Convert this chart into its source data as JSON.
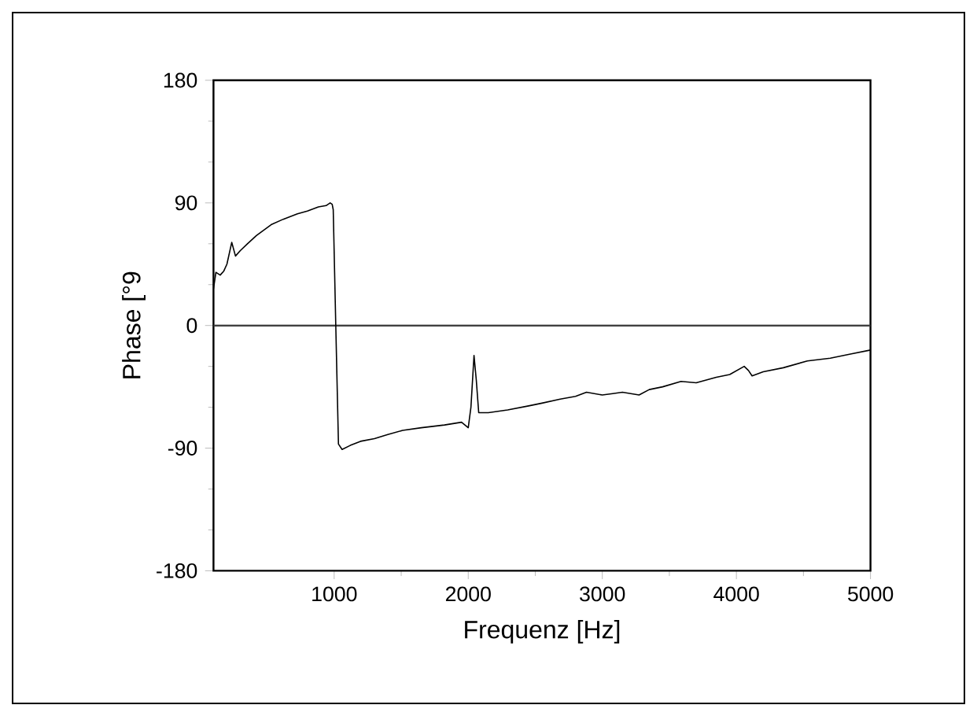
{
  "chart_data": {
    "type": "line",
    "xlabel": "Frequenz [Hz]",
    "ylabel": "Phase [°9",
    "x": [
      100,
      118,
      150,
      177,
      200,
      236,
      264,
      300,
      353,
      420,
      530,
      620,
      726,
      800,
      882,
      940,
      970,
      985,
      993,
      1012,
      1032,
      1059,
      1120,
      1196,
      1300,
      1400,
      1510,
      1650,
      1823,
      1950,
      2000,
      2020,
      2043,
      2060,
      2078,
      2150,
      2294,
      2450,
      2550,
      2686,
      2800,
      2882,
      3000,
      3078,
      3150,
      3274,
      3350,
      3450,
      3587,
      3700,
      3850,
      3950,
      4058,
      4090,
      4117,
      4200,
      4350,
      4529,
      4700,
      4850,
      5000
    ],
    "series": [
      {
        "color": "#000000",
        "values": [
          27,
          39,
          37,
          40,
          45,
          61,
          51,
          55,
          60,
          66,
          74,
          78,
          82,
          84,
          87,
          88,
          90,
          89,
          85,
          0,
          -87,
          -91,
          -88,
          -85,
          -83,
          -80,
          -77,
          -75,
          -73,
          -71,
          -75,
          -60,
          -22,
          -40,
          -64,
          -64,
          -62,
          -59,
          -57,
          -54,
          -52,
          -49,
          -51,
          -50,
          -49,
          -51,
          -47,
          -45,
          -41,
          -42,
          -38,
          -36,
          -30,
          -33,
          -37,
          -34,
          -31,
          -26,
          -24,
          -21,
          -18
        ]
      }
    ],
    "xlim": [
      100,
      5000
    ],
    "ylim": [
      -180,
      180
    ],
    "xticks": [
      1000,
      2000,
      3000,
      4000,
      5000
    ],
    "yticks": [
      -180,
      -90,
      0,
      90,
      180
    ],
    "ref_lines": [
      {
        "axis": "y",
        "value": 0,
        "color": "#404040"
      }
    ],
    "grid": false,
    "marker": "none",
    "line_style": "solid"
  }
}
